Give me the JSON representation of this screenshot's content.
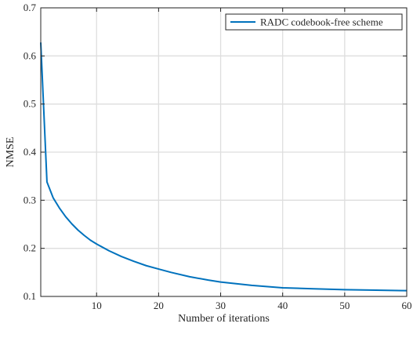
{
  "chart_data": {
    "type": "line",
    "title": "",
    "xlabel": "Number of iterations",
    "ylabel": "NMSE",
    "xlim": [
      1,
      60
    ],
    "ylim": [
      0.1,
      0.7
    ],
    "xticks": [
      10,
      20,
      30,
      40,
      50,
      60
    ],
    "yticks": [
      0.1,
      0.2,
      0.3,
      0.4,
      0.5,
      0.6,
      0.7
    ],
    "grid": true,
    "legend_position": "top-right",
    "series": [
      {
        "name": "RADC codebook-free scheme",
        "color": "#0072BD",
        "x": [
          1,
          2,
          3,
          4,
          5,
          6,
          7,
          8,
          9,
          10,
          12,
          14,
          16,
          18,
          20,
          22,
          25,
          28,
          30,
          35,
          40,
          45,
          50,
          55,
          60
        ],
        "y": [
          0.628,
          0.338,
          0.305,
          0.284,
          0.266,
          0.251,
          0.238,
          0.227,
          0.217,
          0.209,
          0.195,
          0.183,
          0.173,
          0.164,
          0.157,
          0.15,
          0.141,
          0.134,
          0.13,
          0.123,
          0.118,
          0.116,
          0.114,
          0.113,
          0.112
        ]
      }
    ]
  }
}
